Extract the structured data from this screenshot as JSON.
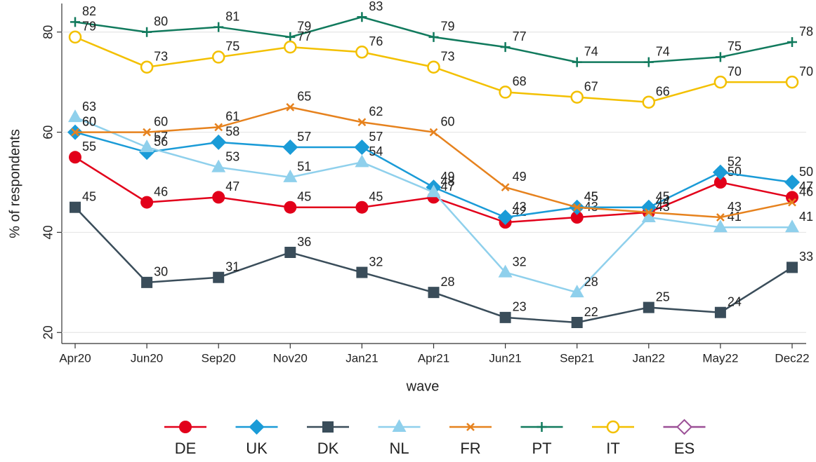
{
  "chart_data": {
    "type": "line",
    "y_label": "% of respondents",
    "x_label": "wave",
    "categories": [
      "Apr20",
      "Jun20",
      "Sep20",
      "Nov20",
      "Jan21",
      "Apr21",
      "Jun21",
      "Sep21",
      "Jan22",
      "May22",
      "Dec22"
    ],
    "ylim": [
      17.8,
      85.7
    ],
    "yticks": [
      20,
      40,
      60,
      80
    ],
    "grid": true,
    "legend": "bottom",
    "series": [
      {
        "name": "DE",
        "color": "#e2001a",
        "marker": "circle",
        "values": [
          55,
          46,
          47,
          45,
          45,
          47,
          42,
          43,
          44,
          50,
          47
        ]
      },
      {
        "name": "UK",
        "color": "#1a9bd7",
        "marker": "diamond",
        "values": [
          60,
          56,
          58,
          57,
          57,
          49,
          43,
          45,
          45,
          52,
          50
        ]
      },
      {
        "name": "DK",
        "color": "#3a4d5a",
        "marker": "square",
        "values": [
          45,
          30,
          31,
          36,
          32,
          28,
          23,
          22,
          25,
          24,
          33
        ]
      },
      {
        "name": "NL",
        "color": "#8fd0ec",
        "marker": "triangle",
        "values": [
          63,
          57,
          53,
          51,
          54,
          48,
          32,
          28,
          43,
          41,
          41
        ]
      },
      {
        "name": "FR",
        "color": "#e6821e",
        "marker": "x",
        "values": [
          60,
          60,
          61,
          65,
          62,
          60,
          49,
          45,
          44,
          43,
          46
        ]
      },
      {
        "name": "PT",
        "color": "#117a5d",
        "marker": "plus",
        "values": [
          82,
          80,
          81,
          79,
          83,
          79,
          77,
          74,
          74,
          75,
          78
        ]
      },
      {
        "name": "IT",
        "color": "#f3c000",
        "marker": "hollow-circle",
        "values": [
          79,
          73,
          75,
          77,
          76,
          73,
          68,
          67,
          66,
          70,
          70
        ]
      },
      {
        "name": "ES",
        "color": "#9b4f96",
        "marker": "hollow-diamond",
        "values": [
          null,
          null,
          null,
          null,
          null,
          null,
          null,
          null,
          null,
          null,
          null
        ]
      }
    ]
  }
}
